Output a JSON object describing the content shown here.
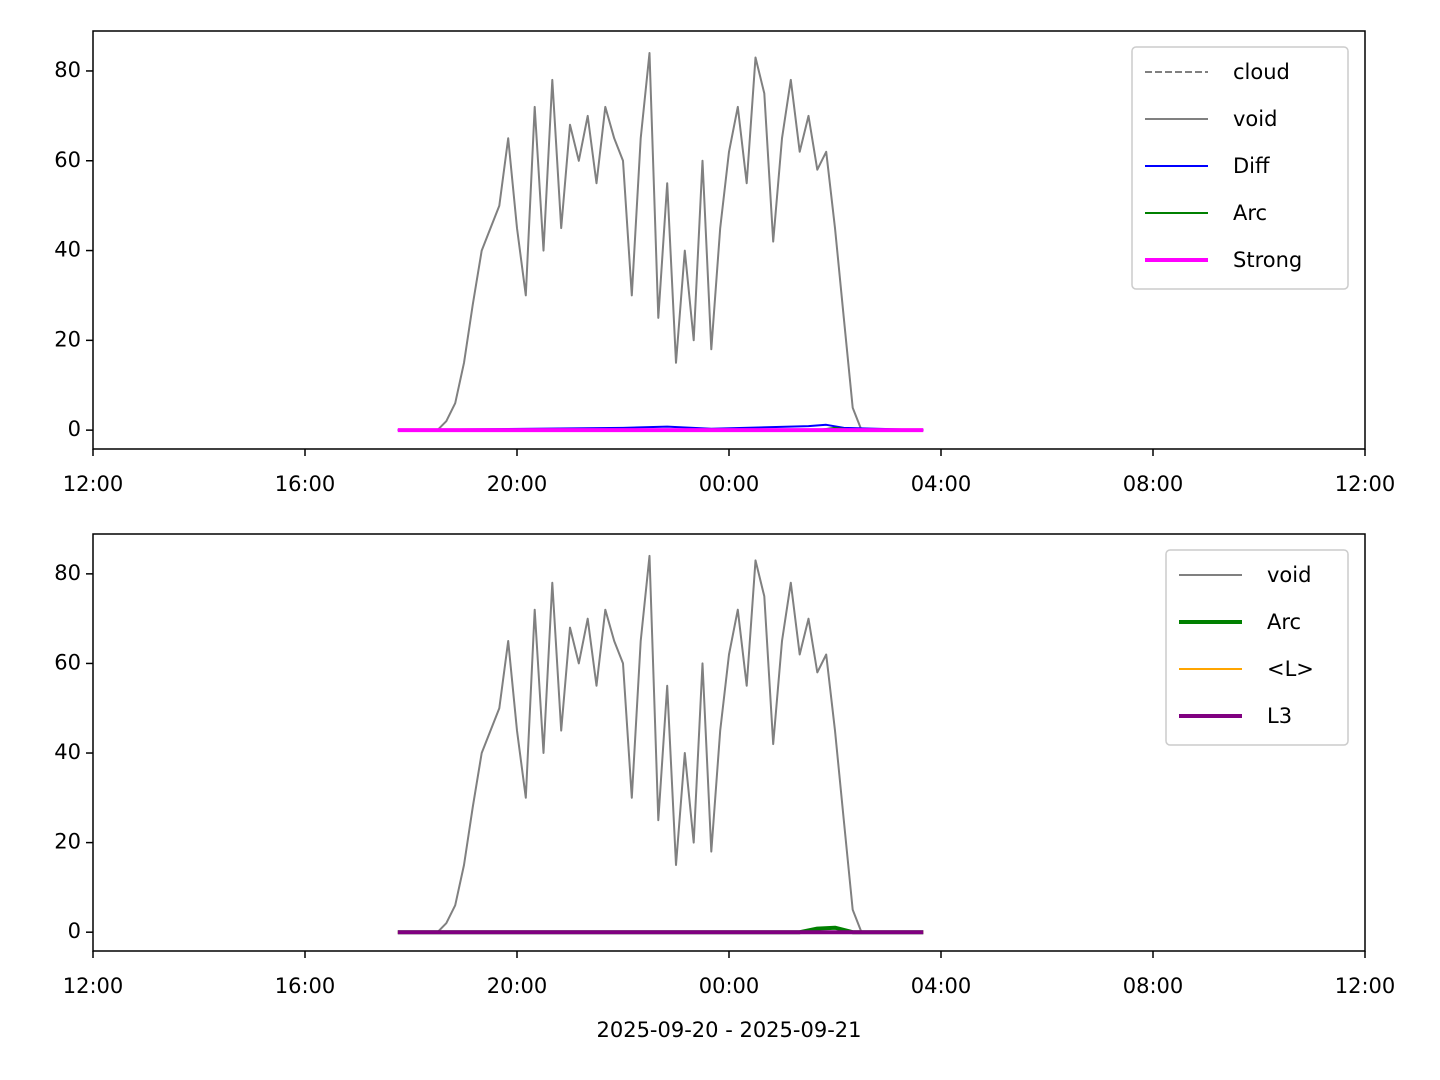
{
  "chart_data": [
    {
      "type": "line",
      "xlim": [
        0,
        1440
      ],
      "xticks": [
        {
          "value": 0,
          "label": "12:00"
        },
        {
          "value": 240,
          "label": "16:00"
        },
        {
          "value": 480,
          "label": "20:00"
        },
        {
          "value": 720,
          "label": "00:00"
        },
        {
          "value": 960,
          "label": "04:00"
        },
        {
          "value": 1200,
          "label": "08:00"
        },
        {
          "value": 1440,
          "label": "12:00"
        }
      ],
      "ylim": [
        -4.2,
        88.9
      ],
      "yticks": [
        0,
        20,
        40,
        60,
        80
      ],
      "legend": "upper right",
      "series": [
        {
          "name": "cloud",
          "color": "#808080",
          "linestyle": "dashed",
          "linewidth": 2,
          "x": [],
          "values": []
        },
        {
          "name": "void",
          "color": "#808080",
          "linestyle": "solid",
          "linewidth": 2,
          "x": [
            390,
            400,
            410,
            420,
            430,
            440,
            450,
            460,
            470,
            480,
            490,
            500,
            510,
            520,
            530,
            540,
            550,
            560,
            570,
            580,
            590,
            600,
            610,
            620,
            630,
            640,
            650,
            660,
            670,
            680,
            690,
            700,
            710,
            720,
            730,
            740,
            750,
            760,
            770,
            780,
            790,
            800,
            810,
            820,
            830,
            840,
            850,
            860,
            870
          ],
          "values": [
            0,
            2,
            6,
            15,
            28,
            40,
            45,
            50,
            65,
            45,
            30,
            72,
            40,
            78,
            45,
            68,
            60,
            70,
            55,
            72,
            65,
            60,
            30,
            65,
            84,
            25,
            55,
            15,
            40,
            20,
            60,
            18,
            45,
            62,
            72,
            55,
            83,
            75,
            42,
            65,
            78,
            62,
            70,
            58,
            62,
            45,
            25,
            5,
            0
          ]
        },
        {
          "name": "Diff",
          "color": "#0000ff",
          "linestyle": "solid",
          "linewidth": 2,
          "x": [
            345,
            600,
            650,
            700,
            810,
            830,
            850,
            940
          ],
          "values": [
            0,
            0.5,
            0.8,
            0.3,
            0.9,
            1.2,
            0.5,
            0
          ]
        },
        {
          "name": "Arc",
          "color": "#008000",
          "linestyle": "solid",
          "linewidth": 2,
          "x": [
            345,
            820,
            840,
            860,
            940
          ],
          "values": [
            0,
            0,
            0.5,
            0,
            0
          ]
        },
        {
          "name": "Strong",
          "color": "#ff00ff",
          "linestyle": "solid",
          "linewidth": 4,
          "x": [
            345,
            940
          ],
          "values": [
            0,
            0
          ]
        }
      ]
    },
    {
      "type": "line",
      "xlim": [
        0,
        1440
      ],
      "xticks": [
        {
          "value": 0,
          "label": "12:00"
        },
        {
          "value": 240,
          "label": "16:00"
        },
        {
          "value": 480,
          "label": "20:00"
        },
        {
          "value": 720,
          "label": "00:00"
        },
        {
          "value": 960,
          "label": "04:00"
        },
        {
          "value": 1200,
          "label": "08:00"
        },
        {
          "value": 1440,
          "label": "12:00"
        }
      ],
      "ylim": [
        -4.2,
        88.9
      ],
      "yticks": [
        0,
        20,
        40,
        60,
        80
      ],
      "legend": "upper right",
      "x_label": "2025-09-20 - 2025-09-21",
      "series": [
        {
          "name": "void",
          "color": "#808080",
          "linestyle": "solid",
          "linewidth": 2,
          "x": [
            390,
            400,
            410,
            420,
            430,
            440,
            450,
            460,
            470,
            480,
            490,
            500,
            510,
            520,
            530,
            540,
            550,
            560,
            570,
            580,
            590,
            600,
            610,
            620,
            630,
            640,
            650,
            660,
            670,
            680,
            690,
            700,
            710,
            720,
            730,
            740,
            750,
            760,
            770,
            780,
            790,
            800,
            810,
            820,
            830,
            840,
            850,
            860,
            870
          ],
          "values": [
            0,
            2,
            6,
            15,
            28,
            40,
            45,
            50,
            65,
            45,
            30,
            72,
            40,
            78,
            45,
            68,
            60,
            70,
            55,
            72,
            65,
            60,
            30,
            65,
            84,
            25,
            55,
            15,
            40,
            20,
            60,
            18,
            45,
            62,
            72,
            55,
            83,
            75,
            42,
            65,
            78,
            62,
            70,
            58,
            62,
            45,
            25,
            5,
            0
          ]
        },
        {
          "name": "Arc",
          "color": "#008000",
          "linestyle": "solid",
          "linewidth": 4,
          "x": [
            345,
            800,
            820,
            840,
            860,
            940
          ],
          "values": [
            0,
            0,
            0.8,
            1,
            0,
            0
          ]
        },
        {
          "name": "<L>",
          "color": "#ffa500",
          "linestyle": "solid",
          "linewidth": 2,
          "x": [
            345,
            940
          ],
          "values": [
            0,
            0
          ]
        },
        {
          "name": "L3",
          "color": "#800080",
          "linestyle": "solid",
          "linewidth": 4,
          "x": [
            345,
            940
          ],
          "values": [
            0,
            0
          ]
        }
      ]
    }
  ]
}
